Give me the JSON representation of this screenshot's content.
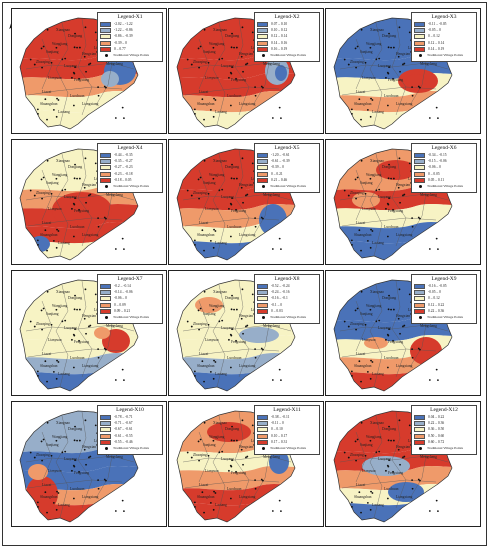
{
  "north_label": "N",
  "colors": [
    "#4a72b8",
    "#97aec9",
    "#f7f3c4",
    "#ef9a6a",
    "#d63b2c"
  ],
  "point_label": "Traditional Village Points",
  "panels": [
    {
      "title": "Legend-X1",
      "classes": [
        "-2.02 – -1.22",
        "-1.22 – -0.86",
        "-0.86 – -0.39",
        "-0.39 – 0",
        "0 – 0.77"
      ]
    },
    {
      "title": "Legend-X2",
      "classes": [
        "0.07 – 0.10",
        "0.10 – 0.12",
        "0.12 – 0.14",
        "0.14 – 0.16",
        "0.16 – 0.19"
      ]
    },
    {
      "title": "Legend-X3",
      "classes": [
        "-0.11 – -0.05",
        "-0.05 – 0",
        "0 – 0.12",
        "0.12 – 0.14",
        "0.14 – 0.19"
      ]
    },
    {
      "title": "Legend-X4",
      "classes": [
        "-0.44 – -0.35",
        "-0.35 – -0.27",
        "-0.27 – -0.23",
        "-0.23 – -0.18",
        "-0.18 – 0.05"
      ]
    },
    {
      "title": "Legend-X5",
      "classes": [
        "-1.20 – -0.61",
        "-0.61 – -0.39",
        "-0.39 – 0",
        "0 – 0.21",
        "0.21 – 0.46"
      ]
    },
    {
      "title": "Legend-X6",
      "classes": [
        "-0.34 – -0.15",
        "-0.15 – -0.06",
        "-0.06 – 0",
        "0 – 0.05",
        "0.05 – 0.11"
      ]
    },
    {
      "title": "Legend-X7",
      "classes": [
        "-0.2 – -0.14",
        "-0.14 – -0.06",
        "-0.06 – 0",
        "0 – 0.09",
        "0.09 – 0.21"
      ]
    },
    {
      "title": "Legend-X8",
      "classes": [
        "-0.52 – -0.24",
        "-0.24 – -0.16",
        "-0.16 – -0.1",
        "-0.1 – 0",
        "0 – 0.03"
      ]
    },
    {
      "title": "Legend-X9",
      "classes": [
        "-0.16 – -0.05",
        "-0.05 – 0",
        "0 – 0.12",
        "0.12 – 0.22",
        "0.22 – 0.36"
      ]
    },
    {
      "title": "Legend-X10",
      "classes": [
        "-0.78 – -0.71",
        "-0.71 – -0.67",
        "-0.67 – -0.61",
        "-0.61 – -0.55",
        "-0.55 – -0.46"
      ]
    },
    {
      "title": "Legend-X11",
      "classes": [
        "-0.38 – -0.11",
        "-0.11 – 0",
        "0 – 0.10",
        "0.10 – 0.17",
        "0.17 – 0.31"
      ]
    },
    {
      "title": "Legend-X12",
      "classes": [
        "0.04 – 0.22",
        "0.22 – 0.36",
        "0.36 – 0.50",
        "0.50 – 0.60",
        "0.60 – 0.72"
      ]
    }
  ],
  "place_names": [
    "Sanjiang",
    "Dongtang",
    "Xiangnao",
    "Zhaoqing",
    "Hengxian",
    "Luoyang",
    "Lianyuan",
    "Liaoxi",
    "Fengxiang",
    "Shuangshan",
    "Laotang",
    "Luochuan",
    "Liutang",
    "Mengcheng",
    "Liangxiang",
    "Wangjiang"
  ]
}
